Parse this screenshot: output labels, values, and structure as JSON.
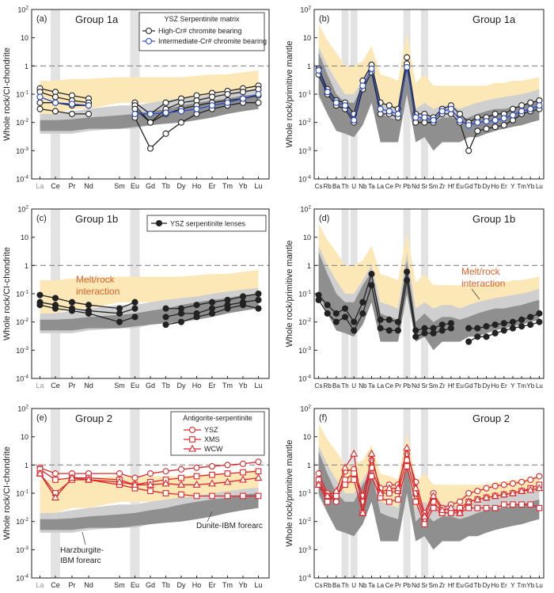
{
  "colors": {
    "envelope_orange": "#fce7b6",
    "band_dark": "#8f8f8f",
    "band_light": "#cfcfcf",
    "highlight_band": "#e3e3e3",
    "dashed_ref": "#888888",
    "blue_series": "#2747c8",
    "black_series": "#222222",
    "red_series": "#e0252a",
    "annotation_orange": "#e0622a"
  },
  "chart_data": [
    {
      "id": "a",
      "type": "line",
      "panel_label": "(a)",
      "title": "Group 1a",
      "ylabel": "Whole rock/CI-chondrite",
      "ylim": [
        0.0001,
        100
      ],
      "y_scale": "log",
      "y_ticks": [
        "10-4",
        "10-3",
        "10-2",
        "10-1",
        "1",
        "10",
        "102"
      ],
      "x_ticks": [
        "La",
        "Ce",
        "Pr",
        "Nd",
        "Sm",
        "Eu",
        "Gd",
        "Tb",
        "Dy",
        "Ho",
        "Er",
        "Tm",
        "Yb",
        "Lu"
      ],
      "grid": false,
      "highlight_columns": [
        "Ce",
        "Eu"
      ],
      "legend": {
        "position": "top-right",
        "title": "YSZ Serpentinite matrix",
        "entries": [
          {
            "label": "High-Cr# chromite bearing",
            "color": "#222222",
            "marker": "circle"
          },
          {
            "label": "Intermediate-Cr# chromite bearing",
            "color": "#2747c8",
            "marker": "circle"
          }
        ]
      },
      "series": [
        {
          "name": "High-Cr# chromite bearing",
          "color": "#222222",
          "values": [
            0.16,
            0.12,
            0.09,
            0.07,
            null,
            0.05,
            0.02,
            0.05,
            0.07,
            0.09,
            0.11,
            0.13,
            0.16,
            0.2
          ]
        },
        {
          "name": "",
          "color": "#222222",
          "values": [
            0.12,
            0.08,
            0.06,
            0.05,
            null,
            0.04,
            0.01,
            0.03,
            0.05,
            0.06,
            0.08,
            0.1,
            0.12,
            0.15
          ]
        },
        {
          "name": "",
          "color": "#222222",
          "values": [
            0.05,
            0.05,
            0.04,
            0.04,
            null,
            0.03,
            0.01,
            0.02,
            0.03,
            0.04,
            0.05,
            0.06,
            0.07,
            0.09
          ]
        },
        {
          "name": "",
          "color": "#222222",
          "values": [
            0.03,
            0.025,
            0.02,
            0.02,
            null,
            0.015,
            0.0012,
            0.004,
            0.01,
            0.02,
            0.03,
            0.04,
            0.05,
            0.05
          ]
        },
        {
          "name": "Intermediate-Cr# chromite bearing",
          "color": "#2747c8",
          "values": [
            0.08,
            0.05,
            0.045,
            0.04,
            null,
            0.02,
            0.02,
            0.022,
            0.025,
            0.03,
            0.04,
            0.05,
            0.07,
            0.1
          ]
        }
      ]
    },
    {
      "id": "b",
      "type": "line",
      "panel_label": "(b)",
      "title": "Group 1a",
      "ylabel": "Whole rock/primitive mantle",
      "ylim": [
        0.0001,
        100
      ],
      "y_scale": "log",
      "y_ticks": [
        "10-4",
        "10-3",
        "10-2",
        "10-1",
        "1",
        "10",
        "102"
      ],
      "x_ticks": [
        "Cs",
        "Rb",
        "Ba",
        "Th",
        "U",
        "Nb",
        "Ta",
        "La",
        "Ce",
        "Pr",
        "Pb",
        "Nd",
        "Sr",
        "Sm",
        "Zr",
        "Hf",
        "Eu",
        "Gd",
        "Tb",
        "Dy",
        "Ho",
        "Er",
        "Y",
        "Tm",
        "Yb",
        "Lu"
      ],
      "grid": false,
      "highlight_columns": [
        "Th",
        "U",
        "Pb",
        "Sr"
      ],
      "series": [
        {
          "name": "",
          "color": "#222222",
          "values": [
            0.8,
            0.15,
            0.06,
            0.05,
            0.02,
            0.3,
            1.1,
            0.05,
            0.04,
            0.03,
            2.0,
            0.02,
            0.02,
            0.015,
            0.03,
            0.04,
            0.02,
            0.01,
            0.015,
            0.015,
            0.02,
            0.02,
            0.03,
            0.04,
            0.05,
            0.06
          ]
        },
        {
          "name": "",
          "color": "#222222",
          "values": [
            0.5,
            0.1,
            0.04,
            0.03,
            0.01,
            0.15,
            0.6,
            0.02,
            0.02,
            0.015,
            1.2,
            0.01,
            0.01,
            0.01,
            0.02,
            0.02,
            0.01,
            0.001,
            0.005,
            0.006,
            0.007,
            0.008,
            0.012,
            0.02,
            0.025,
            0.03
          ]
        },
        {
          "name": "",
          "color": "#2747c8",
          "values": [
            0.7,
            0.12,
            0.05,
            0.04,
            0.012,
            0.2,
            0.8,
            0.03,
            0.025,
            0.02,
            0.9,
            0.015,
            0.015,
            0.012,
            0.025,
            0.03,
            0.012,
            0.008,
            0.01,
            0.011,
            0.012,
            0.014,
            0.018,
            0.025,
            0.03,
            0.04
          ]
        }
      ]
    },
    {
      "id": "c",
      "type": "line",
      "panel_label": "(c)",
      "title": "Group 1b",
      "ylabel": "Whole rock/CI-chondrite",
      "ylim": [
        0.0001,
        100
      ],
      "y_scale": "log",
      "y_ticks": [
        "10-4",
        "10-3",
        "10-2",
        "10-1",
        "1",
        "10",
        "102"
      ],
      "x_ticks": [
        "La",
        "Ce",
        "Pr",
        "Nd",
        "Sm",
        "Eu",
        "Gd",
        "Tb",
        "Dy",
        "Ho",
        "Er",
        "Tm",
        "Yb",
        "Lu"
      ],
      "grid": false,
      "highlight_columns": [
        "Ce",
        "Eu"
      ],
      "legend": {
        "position": "top-right",
        "entries": [
          {
            "label": "YSZ serpentinite lenses",
            "color": "#222222",
            "marker": "filled-circle"
          }
        ]
      },
      "annotation": "Melt/rock interaction",
      "series": [
        {
          "name": "YSZ serpentinite lenses",
          "color": "#222222",
          "values": [
            0.09,
            0.07,
            0.05,
            0.04,
            0.03,
            0.05,
            null,
            0.03,
            0.03,
            0.04,
            0.05,
            0.06,
            0.08,
            0.1
          ]
        },
        {
          "name": "",
          "color": "#222222",
          "values": [
            0.05,
            0.04,
            0.03,
            0.025,
            0.02,
            0.03,
            null,
            0.015,
            0.02,
            0.02,
            0.03,
            0.04,
            0.05,
            0.06
          ]
        },
        {
          "name": "",
          "color": "#222222",
          "values": [
            0.04,
            0.03,
            0.025,
            0.02,
            0.01,
            0.015,
            null,
            0.008,
            0.01,
            0.015,
            0.02,
            0.03,
            0.04,
            0.03
          ]
        }
      ]
    },
    {
      "id": "d",
      "type": "line",
      "panel_label": "(d)",
      "title": "Group 1b",
      "ylabel": "Whole rock/primitive mantle",
      "ylim": [
        0.0001,
        100
      ],
      "y_scale": "log",
      "y_ticks": [
        "10-4",
        "10-3",
        "10-2",
        "10-1",
        "1",
        "10",
        "102"
      ],
      "x_ticks": [
        "Cs",
        "Rb",
        "Ba",
        "Th",
        "U",
        "Nb",
        "Ta",
        "La",
        "Ce",
        "Pr",
        "Pb",
        "Nd",
        "Sr",
        "Sm",
        "Zr",
        "Hf",
        "Eu",
        "Gd",
        "Tb",
        "Dy",
        "Ho",
        "Er",
        "Y",
        "Tm",
        "Yb",
        "Lu"
      ],
      "grid": false,
      "highlight_columns": [
        "Th",
        "U",
        "Pb",
        "Sr"
      ],
      "annotation": "Melt/rock interaction",
      "series": [
        {
          "name": "",
          "color": "#222222",
          "values": [
            0.09,
            0.04,
            0.02,
            0.03,
            0.01,
            0.05,
            0.5,
            0.012,
            0.012,
            0.01,
            0.6,
            0.005,
            0.006,
            0.006,
            0.008,
            0.009,
            null,
            0.006,
            0.006,
            0.007,
            0.008,
            0.009,
            0.01,
            0.012,
            0.015,
            0.02
          ]
        },
        {
          "name": "",
          "color": "#222222",
          "values": [
            0.06,
            0.02,
            0.01,
            0.015,
            0.005,
            0.02,
            0.2,
            0.006,
            0.005,
            0.005,
            0.3,
            0.003,
            0.004,
            0.004,
            0.005,
            0.006,
            null,
            0.002,
            0.003,
            0.003,
            0.004,
            0.005,
            0.006,
            0.007,
            0.008,
            0.01
          ]
        }
      ]
    },
    {
      "id": "e",
      "type": "line",
      "panel_label": "(e)",
      "title": "Group 2",
      "ylabel": "Whole rock/CI-chondrite",
      "ylim": [
        0.0001,
        100
      ],
      "y_scale": "log",
      "y_ticks": [
        "10-4",
        "10-3",
        "10-2",
        "10-1",
        "1",
        "10",
        "102"
      ],
      "x_ticks": [
        "La",
        "Ce",
        "Pr",
        "Nd",
        "Sm",
        "Eu",
        "Gd",
        "Tb",
        "Dy",
        "Ho",
        "Er",
        "Tm",
        "Yb",
        "Lu"
      ],
      "grid": false,
      "highlight_columns": [
        "Ce",
        "Eu"
      ],
      "legend": {
        "position": "top-right",
        "title": "Antigorite-serpentinite",
        "entries": [
          {
            "label": "YSZ",
            "color": "#e0252a",
            "marker": "circle"
          },
          {
            "label": "XMS",
            "color": "#e0252a",
            "marker": "square"
          },
          {
            "label": "WCW",
            "color": "#e0252a",
            "marker": "triangle"
          }
        ]
      },
      "annotations": [
        "Dunite-IBM forearc",
        "Harzburgite-IBM forearc"
      ],
      "series": [
        {
          "name": "YSZ",
          "color": "#e0252a",
          "marker": "circle",
          "values": [
            0.8,
            0.5,
            0.5,
            0.5,
            0.5,
            0.35,
            0.5,
            0.6,
            0.7,
            0.8,
            0.9,
            1.0,
            1.1,
            1.3
          ]
        },
        {
          "name": "XMS",
          "color": "#e0252a",
          "marker": "square",
          "values": [
            0.7,
            0.3,
            0.35,
            0.35,
            0.3,
            0.2,
            0.25,
            0.3,
            0.35,
            0.4,
            0.45,
            0.5,
            0.55,
            0.6
          ]
        },
        {
          "name": "",
          "color": "#e0252a",
          "marker": "square",
          "values": [
            0.5,
            0.1,
            0.3,
            0.3,
            0.2,
            0.15,
            0.12,
            0.1,
            0.09,
            0.08,
            0.08,
            0.08,
            0.08,
            0.08
          ]
        },
        {
          "name": "WCW",
          "color": "#e0252a",
          "marker": "triangle",
          "values": [
            0.5,
            0.07,
            0.35,
            0.3,
            0.25,
            0.2,
            0.2,
            0.22,
            0.2,
            0.2,
            0.22,
            0.25,
            0.3,
            0.35
          ]
        }
      ]
    },
    {
      "id": "f",
      "type": "line",
      "panel_label": "(f)",
      "title": "Group 2",
      "ylabel": "Whole rock/primitive mantle",
      "ylim": [
        0.0001,
        100
      ],
      "y_scale": "log",
      "y_ticks": [
        "10-4",
        "10-3",
        "10-2",
        "10-1",
        "1",
        "10",
        "102"
      ],
      "x_ticks": [
        "Cs",
        "Rb",
        "Ba",
        "Th",
        "U",
        "Nb",
        "Ta",
        "La",
        "Ce",
        "Pr",
        "Pb",
        "Nd",
        "Sr",
        "Sm",
        "Zr",
        "Hf",
        "Eu",
        "Gd",
        "Tb",
        "Dy",
        "Ho",
        "Er",
        "Y",
        "Tm",
        "Yb",
        "Lu"
      ],
      "grid": false,
      "highlight_columns": [
        "Th",
        "U",
        "Pb",
        "Sr"
      ],
      "series": [
        {
          "name": "YSZ",
          "color": "#e0252a",
          "marker": "circle",
          "values": [
            0.5,
            0.1,
            0.05,
            0.6,
            0.7,
            0.08,
            1.5,
            0.15,
            0.2,
            0.2,
            2.5,
            0.25,
            0.02,
            0.1,
            0.03,
            0.04,
            0.05,
            0.1,
            0.12,
            0.15,
            0.18,
            0.2,
            0.22,
            0.25,
            0.3,
            0.4
          ]
        },
        {
          "name": "XMS",
          "color": "#e0252a",
          "marker": "square",
          "values": [
            0.3,
            0.08,
            0.08,
            0.3,
            0.5,
            0.05,
            0.8,
            0.1,
            0.1,
            0.12,
            1.5,
            0.1,
            0.01,
            0.05,
            0.02,
            0.02,
            0.03,
            0.05,
            0.06,
            0.07,
            0.08,
            0.09,
            0.1,
            0.12,
            0.15,
            0.2
          ]
        },
        {
          "name": "",
          "color": "#e0252a",
          "marker": "square",
          "values": [
            0.2,
            0.05,
            0.08,
            0.2,
            0.3,
            0.02,
            0.4,
            0.07,
            0.05,
            0.06,
            0.9,
            0.05,
            0.008,
            0.03,
            0.02,
            0.02,
            0.02,
            0.03,
            0.03,
            0.03,
            0.03,
            0.04,
            0.04,
            0.04,
            0.04,
            0.03
          ]
        },
        {
          "name": "WCW",
          "color": "#e0252a",
          "marker": "triangle",
          "values": [
            0.2,
            0.08,
            0.12,
            0.8,
            2.5,
            0.02,
            2.5,
            0.1,
            0.15,
            0.15,
            4.0,
            0.15,
            0.015,
            0.08,
            0.025,
            0.03,
            0.02,
            0.05,
            0.06,
            0.07,
            0.08,
            0.09,
            0.1,
            0.12,
            0.13,
            0.15
          ]
        }
      ]
    }
  ]
}
